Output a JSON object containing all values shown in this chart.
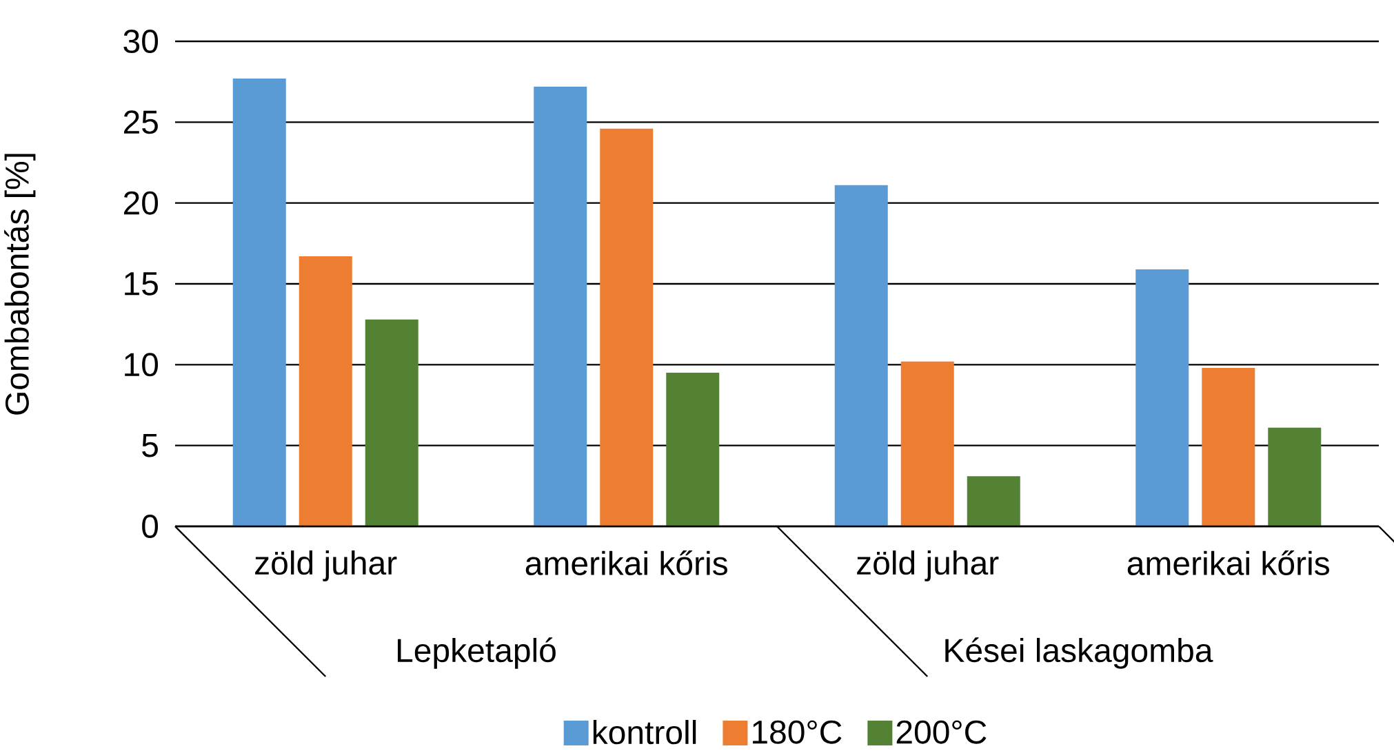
{
  "chart_data": {
    "type": "bar",
    "ylabel": "Gombabontás [%]",
    "categories": [
      "zöld juhar",
      "amerikai kőris",
      "zöld juhar",
      "amerikai kőris"
    ],
    "annotations": [
      "Lepketapló",
      "Kései laskagomba"
    ],
    "series": [
      {
        "name": "kontroll",
        "color": "#5b9bd5",
        "values": [
          27.7,
          27.2,
          21.1,
          15.9
        ]
      },
      {
        "name": "180°C",
        "color": "#ed7d31",
        "values": [
          16.7,
          24.6,
          10.2,
          9.8
        ]
      },
      {
        "name": "200°C",
        "color": "#548235",
        "values": [
          12.8,
          9.5,
          3.1,
          6.1
        ]
      }
    ],
    "ylim": [
      0,
      30
    ],
    "yticks": [
      0,
      5,
      10,
      15,
      20,
      25,
      30
    ],
    "grid": "y",
    "legend": "bottom"
  }
}
